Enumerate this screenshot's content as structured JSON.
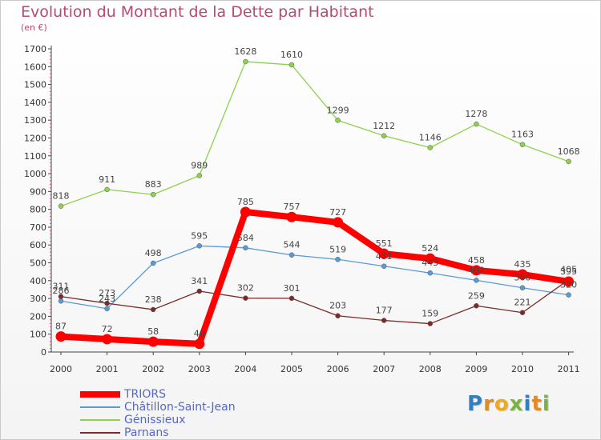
{
  "title": "Evolution du Montant de la Dette par Habitant",
  "subtitle": "(en €)",
  "logo": {
    "letters": [
      "P",
      "r",
      "o",
      "x",
      "i",
      "t",
      "i"
    ],
    "colors": [
      "#2f7fc4",
      "#e58a1f",
      "#f0a81e",
      "#79b342",
      "#2f7fc4",
      "#e58a1f",
      "#79b342"
    ]
  },
  "chart_data": {
    "type": "line",
    "x": [
      "2000",
      "2001",
      "2002",
      "2003",
      "2004",
      "2005",
      "2006",
      "2007",
      "2008",
      "2009",
      "2010",
      "2011"
    ],
    "ylim": [
      0,
      1700
    ],
    "yticks": [
      0,
      100,
      200,
      300,
      400,
      500,
      600,
      700,
      800,
      900,
      1000,
      1100,
      1200,
      1300,
      1400,
      1500,
      1600,
      1700
    ],
    "grid": false,
    "legend": "bottom-left",
    "series": [
      {
        "name": "TRIORS",
        "color": "#ff0000",
        "values": [
          87,
          72,
          58,
          46,
          785,
          757,
          727,
          551,
          524,
          458,
          435,
          395
        ],
        "labels": [
          "87",
          "72",
          "58",
          "46",
          "785",
          "757",
          "727",
          "551",
          "524",
          "458",
          "435",
          "395"
        ]
      },
      {
        "name": "Châtillon-Saint-Jean",
        "color": "#5b9bd5",
        "values": [
          286,
          243,
          498,
          595,
          584,
          544,
          519,
          481,
          443,
          402,
          360,
          320
        ],
        "labels": [
          "286",
          "243",
          "498",
          "595",
          "584",
          "544",
          "519",
          "481",
          "443",
          "402",
          "360",
          "320"
        ]
      },
      {
        "name": "Génissieux",
        "color": "#8fd14f",
        "values": [
          818,
          911,
          883,
          989,
          1628,
          1610,
          1299,
          1212,
          1146,
          1278,
          1163,
          1068
        ],
        "labels": [
          "818",
          "911",
          "883",
          "989",
          "1628",
          "1610",
          "1299",
          "1212",
          "1146",
          "1278",
          "1163",
          "1068"
        ]
      },
      {
        "name": "Parnans",
        "color": "#7a2a2a",
        "values": [
          311,
          273,
          238,
          341,
          302,
          301,
          203,
          177,
          159,
          259,
          221,
          405
        ],
        "labels": [
          "311",
          "273",
          "238",
          "341",
          "302",
          "301",
          "203",
          "177",
          "159",
          "259",
          "221",
          "405"
        ]
      }
    ]
  }
}
